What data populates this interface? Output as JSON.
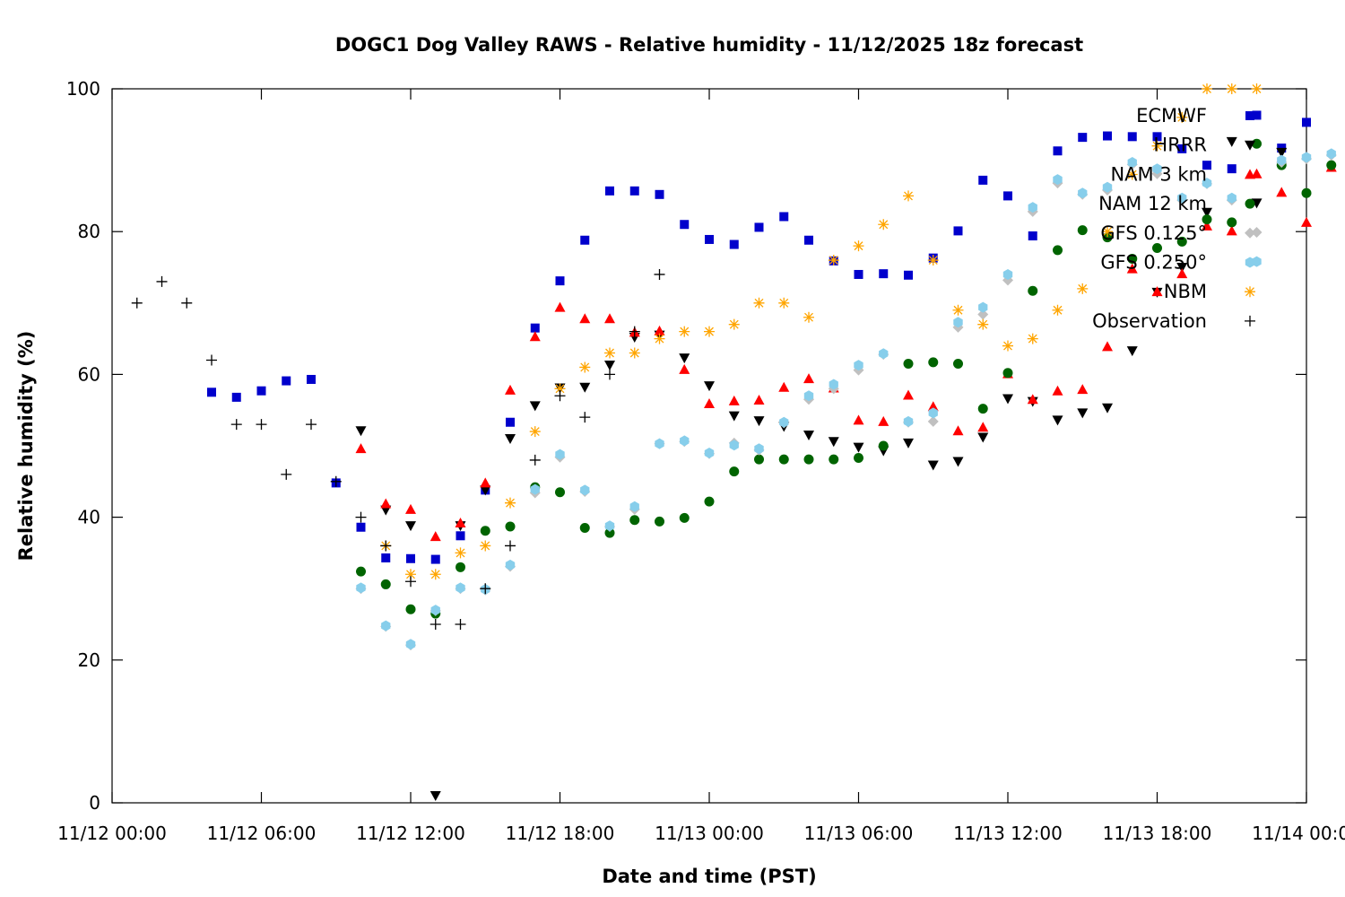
{
  "chart_data": {
    "type": "scatter",
    "title": "DOGC1 Dog Valley RAWS - Relative humidity - 11/12/2025 18z forecast",
    "xlabel": "Date and time (PST)",
    "ylabel": "Relative humidity (%)",
    "xlim": [
      "11/12 00:00",
      "11/14 00:00"
    ],
    "ylim": [
      0,
      100
    ],
    "x_ticks": [
      "11/12 00:00",
      "11/12 06:00",
      "11/12 12:00",
      "11/12 18:00",
      "11/13 00:00",
      "11/13 06:00",
      "11/13 12:00",
      "11/13 18:00",
      "11/14 00:00"
    ],
    "y_ticks": [
      0,
      20,
      40,
      60,
      80,
      100
    ],
    "grid": false,
    "legend_position": "top-right",
    "series": [
      {
        "name": "ECMWF",
        "color": "#0000cc",
        "marker": "square",
        "points": [
          [
            4,
            57.5
          ],
          [
            5,
            56.8
          ],
          [
            6,
            57.7
          ],
          [
            7,
            59.1
          ],
          [
            8,
            59.3
          ],
          [
            9,
            44.8
          ],
          [
            10,
            38.6
          ],
          [
            11,
            34.3
          ],
          [
            12,
            34.2
          ],
          [
            13,
            34.1
          ],
          [
            14,
            37.4
          ],
          [
            15,
            43.8
          ],
          [
            16,
            53.3
          ],
          [
            17,
            66.5
          ],
          [
            18,
            73.1
          ],
          [
            19,
            78.8
          ],
          [
            20,
            85.7
          ],
          [
            21,
            85.7
          ],
          [
            22,
            85.2
          ],
          [
            23,
            81.0
          ],
          [
            24,
            78.9
          ],
          [
            25,
            78.2
          ],
          [
            26,
            80.6
          ],
          [
            27,
            82.1
          ],
          [
            28,
            78.8
          ],
          [
            29,
            75.9
          ],
          [
            30,
            74.0
          ],
          [
            31,
            74.1
          ],
          [
            32,
            73.9
          ],
          [
            33,
            76.3
          ],
          [
            34,
            80.1
          ],
          [
            35,
            87.2
          ],
          [
            36,
            85.0
          ],
          [
            37,
            79.4
          ],
          [
            38,
            91.3
          ],
          [
            39,
            93.2
          ],
          [
            40,
            93.4
          ],
          [
            41,
            93.3
          ],
          [
            42,
            93.3
          ],
          [
            43,
            91.6
          ],
          [
            44,
            89.3
          ],
          [
            45,
            88.8
          ],
          [
            46,
            96.3
          ],
          [
            47,
            91.7
          ],
          [
            48,
            95.3
          ]
        ]
      },
      {
        "name": "HRRR",
        "color": "#000000",
        "marker": "triangle-down",
        "points": [
          [
            10,
            52.1
          ],
          [
            11,
            41.0
          ],
          [
            12,
            38.8
          ],
          [
            13,
            1.0
          ],
          [
            14,
            38.8
          ],
          [
            15,
            43.8
          ],
          [
            16,
            51.0
          ],
          [
            17,
            55.6
          ],
          [
            18,
            58.1
          ],
          [
            19,
            58.2
          ],
          [
            20,
            61.3
          ],
          [
            21,
            65.2
          ],
          [
            22,
            65.5
          ],
          [
            23,
            62.3
          ],
          [
            24,
            58.4
          ],
          [
            25,
            54.2
          ],
          [
            26,
            53.5
          ],
          [
            27,
            52.7
          ],
          [
            28,
            51.5
          ],
          [
            29,
            50.6
          ],
          [
            30,
            49.8
          ],
          [
            31,
            49.3
          ],
          [
            32,
            50.4
          ],
          [
            33,
            47.3
          ],
          [
            34,
            47.8
          ],
          [
            35,
            51.2
          ],
          [
            36,
            56.6
          ],
          [
            37,
            56.2
          ],
          [
            38,
            53.6
          ],
          [
            39,
            54.6
          ],
          [
            40,
            55.3
          ],
          [
            41,
            63.3
          ],
          [
            42,
            71.5
          ],
          [
            43,
            75.0
          ],
          [
            44,
            82.7
          ],
          [
            45,
            92.6
          ],
          [
            46,
            84.0
          ],
          [
            47,
            91.1
          ]
        ]
      },
      {
        "name": "NAM 3 km",
        "color": "#ff0000",
        "marker": "triangle-up",
        "points": [
          [
            10,
            49.6
          ],
          [
            11,
            41.9
          ],
          [
            12,
            41.1
          ],
          [
            13,
            37.3
          ],
          [
            14,
            39.2
          ],
          [
            15,
            44.8
          ],
          [
            16,
            57.8
          ],
          [
            17,
            65.3
          ],
          [
            18,
            69.4
          ],
          [
            19,
            67.8
          ],
          [
            20,
            67.8
          ],
          [
            21,
            65.9
          ],
          [
            22,
            66.1
          ],
          [
            23,
            60.7
          ],
          [
            24,
            55.9
          ],
          [
            25,
            56.3
          ],
          [
            26,
            56.4
          ],
          [
            27,
            58.2
          ],
          [
            28,
            59.4
          ],
          [
            29,
            58.1
          ],
          [
            30,
            53.6
          ],
          [
            31,
            53.4
          ],
          [
            32,
            57.1
          ],
          [
            33,
            55.5
          ],
          [
            34,
            52.1
          ],
          [
            35,
            52.6
          ],
          [
            36,
            60.1
          ],
          [
            37,
            56.5
          ],
          [
            38,
            57.7
          ],
          [
            39,
            57.9
          ],
          [
            40,
            63.9
          ],
          [
            41,
            74.8
          ],
          [
            42,
            71.6
          ],
          [
            43,
            74.1
          ],
          [
            44,
            80.8
          ],
          [
            45,
            80.1
          ],
          [
            46,
            88.1
          ],
          [
            47,
            85.5
          ],
          [
            48,
            81.3
          ],
          [
            49,
            89.0
          ]
        ]
      },
      {
        "name": "NAM 12 km",
        "color": "#006400",
        "marker": "circle",
        "points": [
          [
            10,
            32.4
          ],
          [
            11,
            30.6
          ],
          [
            12,
            27.1
          ],
          [
            13,
            26.5
          ],
          [
            14,
            33.0
          ],
          [
            15,
            38.1
          ],
          [
            16,
            38.7
          ],
          [
            17,
            44.2
          ],
          [
            18,
            43.5
          ],
          [
            19,
            38.5
          ],
          [
            20,
            37.8
          ],
          [
            21,
            39.6
          ],
          [
            22,
            39.4
          ],
          [
            23,
            39.9
          ],
          [
            24,
            42.2
          ],
          [
            25,
            46.4
          ],
          [
            26,
            48.1
          ],
          [
            27,
            48.1
          ],
          [
            28,
            48.1
          ],
          [
            29,
            48.1
          ],
          [
            30,
            48.3
          ],
          [
            31,
            50.0
          ],
          [
            32,
            61.5
          ],
          [
            33,
            61.7
          ],
          [
            34,
            61.5
          ],
          [
            35,
            55.2
          ],
          [
            36,
            60.2
          ],
          [
            37,
            71.7
          ],
          [
            38,
            77.4
          ],
          [
            39,
            80.2
          ],
          [
            40,
            79.2
          ],
          [
            41,
            76.2
          ],
          [
            42,
            77.7
          ],
          [
            43,
            78.6
          ],
          [
            44,
            81.7
          ],
          [
            45,
            81.3
          ],
          [
            46,
            92.3
          ],
          [
            47,
            89.3
          ],
          [
            48,
            85.4
          ],
          [
            49,
            89.3
          ]
        ]
      },
      {
        "name": "GFS 0.125°",
        "color": "#c0c0c0",
        "marker": "diamond",
        "points": [
          [
            10,
            30.0
          ],
          [
            11,
            24.7
          ],
          [
            12,
            22.1
          ],
          [
            13,
            26.9
          ],
          [
            14,
            30.0
          ],
          [
            15,
            29.8
          ],
          [
            16,
            33.1
          ],
          [
            17,
            43.4
          ],
          [
            18,
            48.4
          ],
          [
            19,
            43.6
          ],
          [
            20,
            38.7
          ],
          [
            21,
            41.1
          ],
          [
            22,
            50.3
          ],
          [
            23,
            50.6
          ],
          [
            24,
            48.9
          ],
          [
            25,
            50.4
          ],
          [
            26,
            49.4
          ],
          [
            27,
            53.2
          ],
          [
            28,
            56.5
          ],
          [
            29,
            58.0
          ],
          [
            30,
            60.6
          ],
          [
            31,
            62.8
          ],
          [
            32,
            53.3
          ],
          [
            33,
            53.4
          ],
          [
            34,
            66.6
          ],
          [
            35,
            68.4
          ],
          [
            36,
            73.2
          ],
          [
            37,
            82.8
          ],
          [
            38,
            86.8
          ],
          [
            39,
            85.2
          ],
          [
            40,
            85.8
          ],
          [
            41,
            89.4
          ],
          [
            42,
            88.1
          ],
          [
            43,
            84.4
          ],
          [
            44,
            86.7
          ],
          [
            45,
            84.4
          ],
          [
            46,
            79.9
          ],
          [
            47,
            89.7
          ],
          [
            48,
            90.2
          ],
          [
            49,
            90.7
          ]
        ]
      },
      {
        "name": "GFS 0.250°",
        "color": "#87ceeb",
        "marker": "hexagon",
        "points": [
          [
            10,
            30.1
          ],
          [
            11,
            24.8
          ],
          [
            12,
            22.2
          ],
          [
            13,
            27.0
          ],
          [
            14,
            30.1
          ],
          [
            15,
            29.9
          ],
          [
            16,
            33.3
          ],
          [
            17,
            43.9
          ],
          [
            18,
            48.8
          ],
          [
            19,
            43.8
          ],
          [
            20,
            38.8
          ],
          [
            21,
            41.5
          ],
          [
            22,
            50.3
          ],
          [
            23,
            50.7
          ],
          [
            24,
            49.0
          ],
          [
            25,
            50.1
          ],
          [
            26,
            49.6
          ],
          [
            27,
            53.3
          ],
          [
            28,
            57.0
          ],
          [
            29,
            58.6
          ],
          [
            30,
            61.3
          ],
          [
            31,
            62.9
          ],
          [
            32,
            53.4
          ],
          [
            33,
            54.6
          ],
          [
            34,
            67.3
          ],
          [
            35,
            69.4
          ],
          [
            36,
            74.0
          ],
          [
            37,
            83.4
          ],
          [
            38,
            87.3
          ],
          [
            39,
            85.4
          ],
          [
            40,
            86.2
          ],
          [
            41,
            89.7
          ],
          [
            42,
            88.8
          ],
          [
            43,
            84.7
          ],
          [
            44,
            86.8
          ],
          [
            45,
            84.7
          ],
          [
            46,
            75.8
          ],
          [
            47,
            90.0
          ],
          [
            48,
            90.4
          ],
          [
            49,
            90.9
          ]
        ]
      },
      {
        "name": "NBM",
        "color": "#ffa500",
        "marker": "asterisk",
        "points": [
          [
            11,
            36.0
          ],
          [
            12,
            32.0
          ],
          [
            13,
            32.0
          ],
          [
            14,
            35.0
          ],
          [
            15,
            36.0
          ],
          [
            16,
            42.0
          ],
          [
            17,
            52.0
          ],
          [
            18,
            58.0
          ],
          [
            19,
            61.0
          ],
          [
            20,
            63.0
          ],
          [
            21,
            63.0
          ],
          [
            22,
            65.0
          ],
          [
            23,
            66.0
          ],
          [
            24,
            66.0
          ],
          [
            25,
            67.0
          ],
          [
            26,
            70.0
          ],
          [
            27,
            70.0
          ],
          [
            28,
            68.0
          ],
          [
            29,
            76.0
          ],
          [
            30,
            78.0
          ],
          [
            31,
            81.0
          ],
          [
            32,
            85.0
          ],
          [
            33,
            76.0
          ],
          [
            34,
            69.0
          ],
          [
            35,
            67.0
          ],
          [
            36,
            64.0
          ],
          [
            37,
            65.0
          ],
          [
            38,
            69.0
          ],
          [
            39,
            72.0
          ],
          [
            40,
            80.0
          ],
          [
            41,
            88.0
          ],
          [
            42,
            92.0
          ],
          [
            43,
            96.0
          ],
          [
            44,
            100.0
          ],
          [
            45,
            100.0
          ],
          [
            46,
            100.0
          ]
        ]
      },
      {
        "name": "Observation",
        "color": "#000000",
        "marker": "plus",
        "points": [
          [
            1,
            70
          ],
          [
            2,
            73
          ],
          [
            3,
            70
          ],
          [
            4,
            62
          ],
          [
            5,
            53
          ],
          [
            6,
            53
          ],
          [
            7,
            46
          ],
          [
            8,
            53
          ],
          [
            9,
            45
          ],
          [
            10,
            40
          ],
          [
            11,
            36
          ],
          [
            12,
            31
          ],
          [
            13,
            25
          ],
          [
            14,
            25
          ],
          [
            15,
            30
          ],
          [
            16,
            36
          ],
          [
            17,
            48
          ],
          [
            18,
            57
          ],
          [
            19,
            54
          ],
          [
            20,
            60
          ],
          [
            21,
            66
          ],
          [
            22,
            74
          ]
        ]
      }
    ]
  }
}
